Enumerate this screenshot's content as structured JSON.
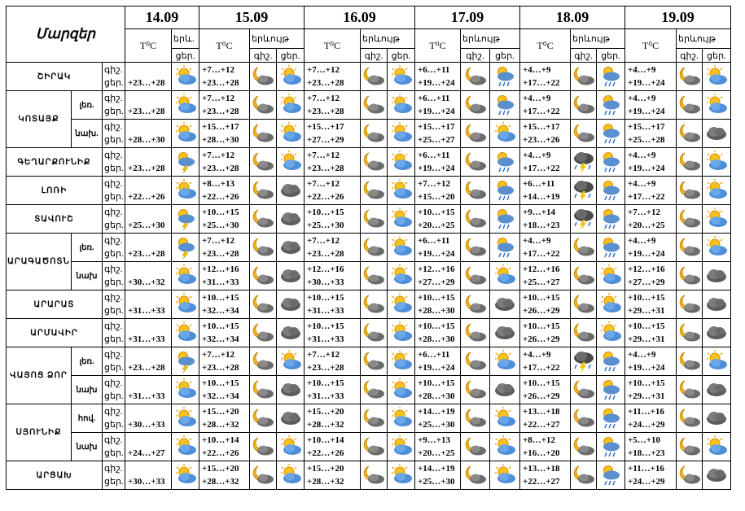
{
  "corner_label": "Մարզեր",
  "dates": [
    "14.09",
    "15.09",
    "16.09",
    "17.09",
    "18.09",
    "19.09"
  ],
  "col_temp": "T⁰C",
  "col_weather": "երևույթ",
  "col_weather_short": "երև.",
  "night": "գիշ.",
  "day": "ցեր.",
  "rows": [
    {
      "region": "ՇԻՐԱԿ",
      "sub": "",
      "d14": "+23…+28",
      "t": [
        "+7…+12",
        "+23…+28",
        "+7…+12",
        "+23…+28",
        "+6…+11",
        "+19…+24",
        "+4…+9",
        "+17…+22",
        "+4…+9",
        "+19…+24"
      ],
      "icons": [
        "sun-cloud",
        "moon-cloud",
        "sun-cloud",
        "moon-cloud",
        "sun-cloud",
        "moon-cloud",
        "sun-cloud-rain",
        "moon-cloud",
        "sun-cloud-rain",
        "moon-cloud",
        "sun-cloud"
      ]
    },
    {
      "region": "ԿՈՏԱՅՔ",
      "sub": "լեռ.",
      "d14": "+23…+28",
      "t": [
        "+7…+12",
        "+23…+28",
        "+7…+12",
        "+23…+28",
        "+6…+11",
        "+19…+24",
        "+4…+9",
        "+17…+22",
        "+4…+9",
        "+19…+24"
      ],
      "icons": [
        "sun-cloud",
        "moon-cloud",
        "sun-cloud",
        "moon-cloud",
        "sun-cloud",
        "moon-cloud",
        "sun-cloud-rain",
        "moon-cloud",
        "sun-cloud-rain",
        "moon-cloud",
        "sun-cloud"
      ]
    },
    {
      "region": "",
      "sub": "նախ.",
      "d14": "+28…+30",
      "t": [
        "+15…+17",
        "+28…+30",
        "+15…+17",
        "+27…+29",
        "+15…+17",
        "+25…+27",
        "+15…+17",
        "+23…+26",
        "+15…+17",
        "+25…+28"
      ],
      "icons": [
        "sun-cloud",
        "moon-cloud",
        "sun-cloud",
        "moon-cloud",
        "sun-cloud",
        "moon-cloud",
        "sun-cloud",
        "moon-cloud",
        "sun-cloud-rain",
        "moon-cloud",
        "cloud"
      ]
    },
    {
      "region": "ԳԵՂԱՐՔՈՒՆԻՔ",
      "sub": "",
      "d14": "+23…+28",
      "t": [
        "+7…+12",
        "+23…+28",
        "+7…+12",
        "+23…+28",
        "+6…+11",
        "+19…+24",
        "+4…+9",
        "+17…+22",
        "+4…+9",
        "+19…+24"
      ],
      "icons": [
        "sun-cloud-storm",
        "moon-cloud",
        "sun-cloud",
        "moon-cloud",
        "sun-cloud",
        "moon-cloud",
        "sun-cloud-rain",
        "storm",
        "sun-cloud-rain",
        "moon-cloud",
        "sun-cloud"
      ]
    },
    {
      "region": "ԼՈՌԻ",
      "sub": "",
      "d14": "+22…+26",
      "t": [
        "+8…+13",
        "+22…+26",
        "+7…+12",
        "+22…+26",
        "+7…+12",
        "+15…+20",
        "+6…+11",
        "+14…+19",
        "+4…+9",
        "+17…+22"
      ],
      "icons": [
        "sun-cloud",
        "moon-cloud",
        "cloud",
        "moon-cloud",
        "sun-cloud",
        "moon-cloud",
        "sun-cloud-rain",
        "storm",
        "sun-cloud-rain",
        "moon-cloud",
        "sun-cloud"
      ]
    },
    {
      "region": "ՏԱՎՈՒՇ",
      "sub": "",
      "d14": "+25…+30",
      "t": [
        "+10…+15",
        "+25…+30",
        "+10…+15",
        "+25…+30",
        "+10…+15",
        "+20…+25",
        "+9…+14",
        "+18…+23",
        "+7…+12",
        "+20…+25"
      ],
      "icons": [
        "sun-cloud-storm",
        "moon-cloud",
        "cloud",
        "moon-cloud",
        "sun-cloud",
        "moon-cloud",
        "sun-cloud-rain",
        "storm",
        "sun-cloud-rain",
        "moon-cloud",
        "sun-cloud"
      ]
    },
    {
      "region": "ԱՐԱԳԱԾՈՏՆ",
      "sub": "լեռ.",
      "d14": "+23…+28",
      "t": [
        "+7…+12",
        "+23…+28",
        "+7…+12",
        "+23…+28",
        "+6…+11",
        "+19…+24",
        "+4…+9",
        "+17…+22",
        "+4…+9",
        "+19…+24"
      ],
      "icons": [
        "sun-cloud-storm",
        "moon-cloud",
        "cloud",
        "moon-cloud",
        "sun-cloud",
        "moon-cloud",
        "sun-cloud-rain",
        "moon-cloud",
        "sun-cloud-rain",
        "moon-cloud",
        "sun-cloud"
      ]
    },
    {
      "region": "",
      "sub": "նախ",
      "d14": "+30…+32",
      "t": [
        "+12…+16",
        "+31…+33",
        "+12…+16",
        "+30…+33",
        "+12…+16",
        "+27…+29",
        "+12…+16",
        "+25…+27",
        "+12…+16",
        "+27…+29"
      ],
      "icons": [
        "sun-cloud",
        "moon-cloud",
        "cloud",
        "moon-cloud",
        "sun-cloud",
        "moon-cloud",
        "sun-cloud",
        "moon-cloud",
        "sun-cloud",
        "moon-cloud",
        "cloud"
      ]
    },
    {
      "region": "ԱՐԱՐԱՏ",
      "sub": "",
      "d14": "+31…+33",
      "t": [
        "+10…+15",
        "+32…+34",
        "+10…+15",
        "+31…+33",
        "+10…+15",
        "+28…+30",
        "+10…+15",
        "+26…+29",
        "+10…+15",
        "+29…+31"
      ],
      "icons": [
        "sun-cloud",
        "moon-cloud",
        "cloud",
        "moon-cloud",
        "sun-cloud",
        "moon-cloud",
        "cloud",
        "moon-cloud",
        "sun-cloud",
        "moon-cloud",
        "cloud"
      ]
    },
    {
      "region": "ԱՐՄԱՎԻՐ",
      "sub": "",
      "d14": "+31…+33",
      "t": [
        "+10…+15",
        "+32…+34",
        "+10…+15",
        "+31…+33",
        "+10…+15",
        "+28…+30",
        "+10…+15",
        "+26…+29",
        "+10…+15",
        "+29…+31"
      ],
      "icons": [
        "sun-cloud",
        "moon-cloud",
        "cloud",
        "moon-cloud",
        "sun-cloud",
        "moon-cloud",
        "cloud",
        "moon-cloud",
        "sun-cloud",
        "moon-cloud",
        "cloud"
      ]
    },
    {
      "region": "ՎԱՅՈՑ ՁՈՐ",
      "sub": "լեռ.",
      "d14": "+23…+28",
      "t": [
        "+7…+12",
        "+23…+28",
        "+7…+12",
        "+23…+28",
        "+6…+11",
        "+19…+24",
        "+4…+9",
        "+17…+22",
        "+4…+9",
        "+19…+24"
      ],
      "icons": [
        "sun-cloud-storm",
        "moon-cloud",
        "sun-cloud",
        "moon-cloud",
        "sun-cloud",
        "moon-cloud",
        "sun-cloud",
        "storm",
        "sun-cloud-rain",
        "moon-cloud",
        "sun-cloud"
      ]
    },
    {
      "region": "",
      "sub": "նախ",
      "d14": "+31…+33",
      "t": [
        "+10…+15",
        "+32…+34",
        "+10…+15",
        "+31…+33",
        "+10…+15",
        "+28…+30",
        "+10…+15",
        "+26…+29",
        "+10…+15",
        "+29…+31"
      ],
      "icons": [
        "sun-cloud",
        "moon-cloud",
        "cloud",
        "moon-cloud",
        "sun-cloud",
        "moon-cloud",
        "cloud",
        "moon-cloud",
        "sun-cloud-rain",
        "moon-cloud",
        "cloud"
      ]
    },
    {
      "region": "ՍՅՈՒՆԻՔ",
      "sub": "հով.",
      "d14": "+30…+33",
      "t": [
        "+15…+20",
        "+28…+32",
        "+15…+20",
        "+28…+32",
        "+14…+19",
        "+25…+30",
        "+13…+18",
        "+22…+27",
        "+11…+16",
        "+24…+29"
      ],
      "icons": [
        "sun-cloud",
        "moon-cloud",
        "cloud",
        "moon-cloud",
        "sun-cloud",
        "moon-cloud",
        "sun-cloud",
        "moon-cloud",
        "sun-cloud-rain",
        "moon-cloud",
        "cloud"
      ]
    },
    {
      "region": "",
      "sub": "նախ",
      "d14": "+24…+27",
      "t": [
        "+10…+14",
        "+22…+26",
        "+10…+14",
        "+22…+26",
        "+9…+13",
        "+20…+25",
        "+8…+12",
        "+16…+20",
        "+5…+10",
        "+18…+23"
      ],
      "icons": [
        "sun-cloud",
        "moon-cloud",
        "sun-cloud",
        "moon-cloud",
        "sun-cloud",
        "moon-cloud",
        "sun-cloud",
        "moon-cloud",
        "sun-cloud-rain",
        "moon-cloud",
        "sun-cloud"
      ]
    },
    {
      "region": "ԱՐՑԱԽ",
      "sub": "",
      "d14": "+30…+33",
      "t": [
        "+15…+20",
        "+28…+32",
        "+15…+20",
        "+28…+32",
        "+14…+19",
        "+25…+30",
        "+13…+18",
        "+22…+27",
        "+11…+16",
        "+24…+29"
      ],
      "icons": [
        "sun-cloud",
        "moon-cloud",
        "sun-cloud",
        "moon-cloud",
        "sun-cloud",
        "moon-cloud",
        "sun-cloud",
        "moon-cloud",
        "sun-cloud-rain",
        "moon-cloud",
        "cloud"
      ]
    }
  ]
}
